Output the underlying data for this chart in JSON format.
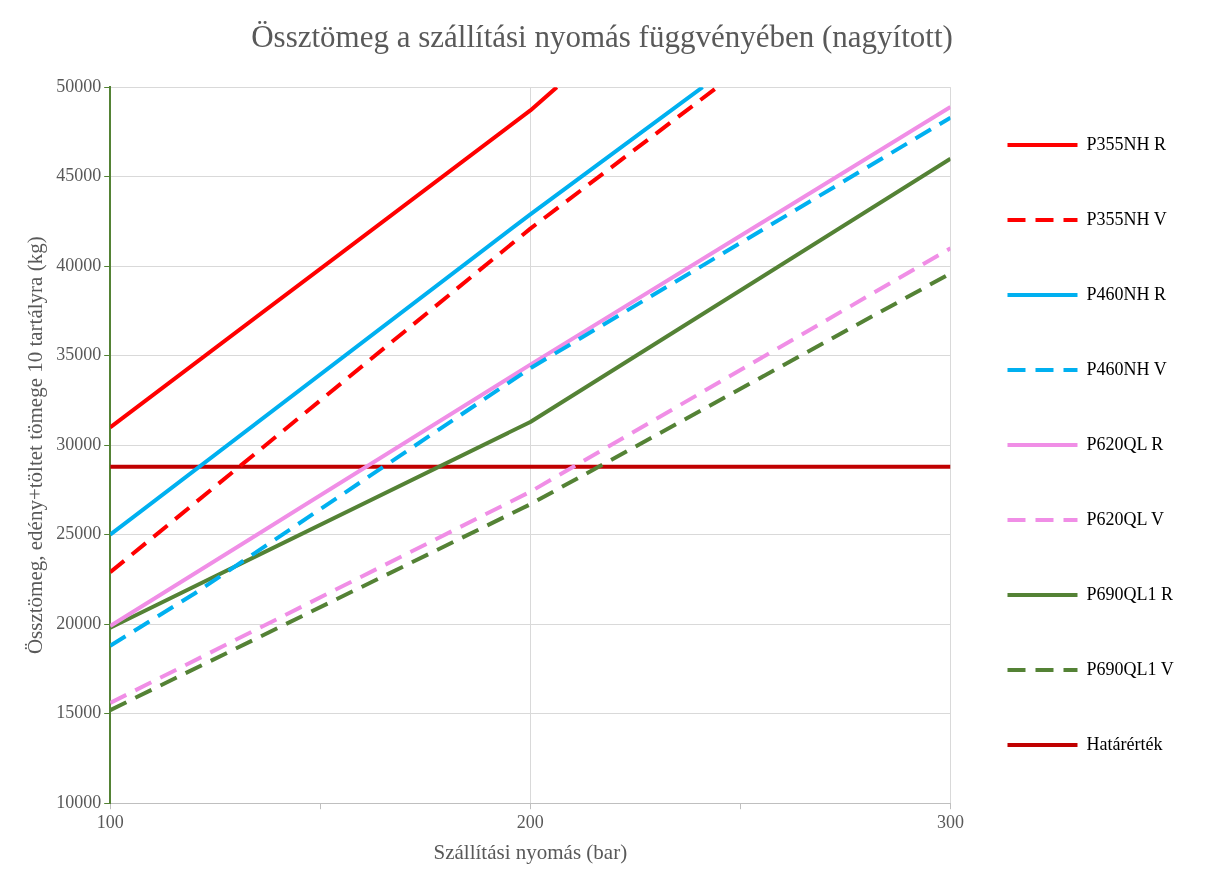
{
  "chart_data": {
    "type": "line",
    "title": "Össztömeg a szállítási nyomás függvényében (nagyított)",
    "xlabel": "Szállítási nyomás (bar)",
    "ylabel": "Össztömeg, edény+töltet tömege 10 tartályra (kg)",
    "xlim": [
      100,
      300
    ],
    "xticks": [
      100,
      {
        "value": 150,
        "label": null
      },
      200,
      {
        "value": 250,
        "label": null
      },
      300
    ],
    "ylim": [
      10000,
      50000
    ],
    "yticks": [
      10000,
      15000,
      20000,
      25000,
      30000,
      35000,
      40000,
      45000,
      50000
    ],
    "grid": true,
    "legend": "right",
    "marker": "none",
    "series": [
      {
        "name": "P355NH R",
        "color": "#ff0000",
        "line_style": "solid",
        "x": [
          100,
          200,
          206.3
        ],
        "values": [
          31000,
          48700,
          50000
        ]
      },
      {
        "name": "P355NH V",
        "color": "#ff0000",
        "line_style": "dashed",
        "x": [
          100,
          200,
          244.5
        ],
        "values": [
          22900,
          42100,
          50000
        ]
      },
      {
        "name": "P460NH R",
        "color": "#00b0f0",
        "line_style": "solid",
        "x": [
          100,
          200,
          241
        ],
        "values": [
          25000,
          42900,
          50000
        ]
      },
      {
        "name": "P460NH V",
        "color": "#00b0f0",
        "line_style": "dashed",
        "x": [
          100,
          120,
          200,
          300
        ],
        "values": [
          18800,
          21700,
          34300,
          48300
        ]
      },
      {
        "name": "P620QL R",
        "color": "#f08ee6",
        "line_style": "solid",
        "x": [
          100,
          200,
          300
        ],
        "values": [
          19900,
          34500,
          48900
        ]
      },
      {
        "name": "P620QL V",
        "color": "#f08ee6",
        "line_style": "dashed",
        "x": [
          100,
          200,
          300
        ],
        "values": [
          15600,
          27400,
          41000
        ]
      },
      {
        "name": "P690QL1 R",
        "color": "#548235",
        "line_style": "solid",
        "x": [
          100,
          200,
          300
        ],
        "values": [
          19800,
          31300,
          46000
        ]
      },
      {
        "name": "P690QL1 V",
        "color": "#548235",
        "line_style": "dashed",
        "x": [
          100,
          200,
          300
        ],
        "values": [
          15200,
          26700,
          39600
        ]
      },
      {
        "name": "Határérték",
        "color": "#c00000",
        "line_style": "solid",
        "x": [
          100,
          300
        ],
        "values": [
          28800,
          28800
        ]
      }
    ]
  }
}
